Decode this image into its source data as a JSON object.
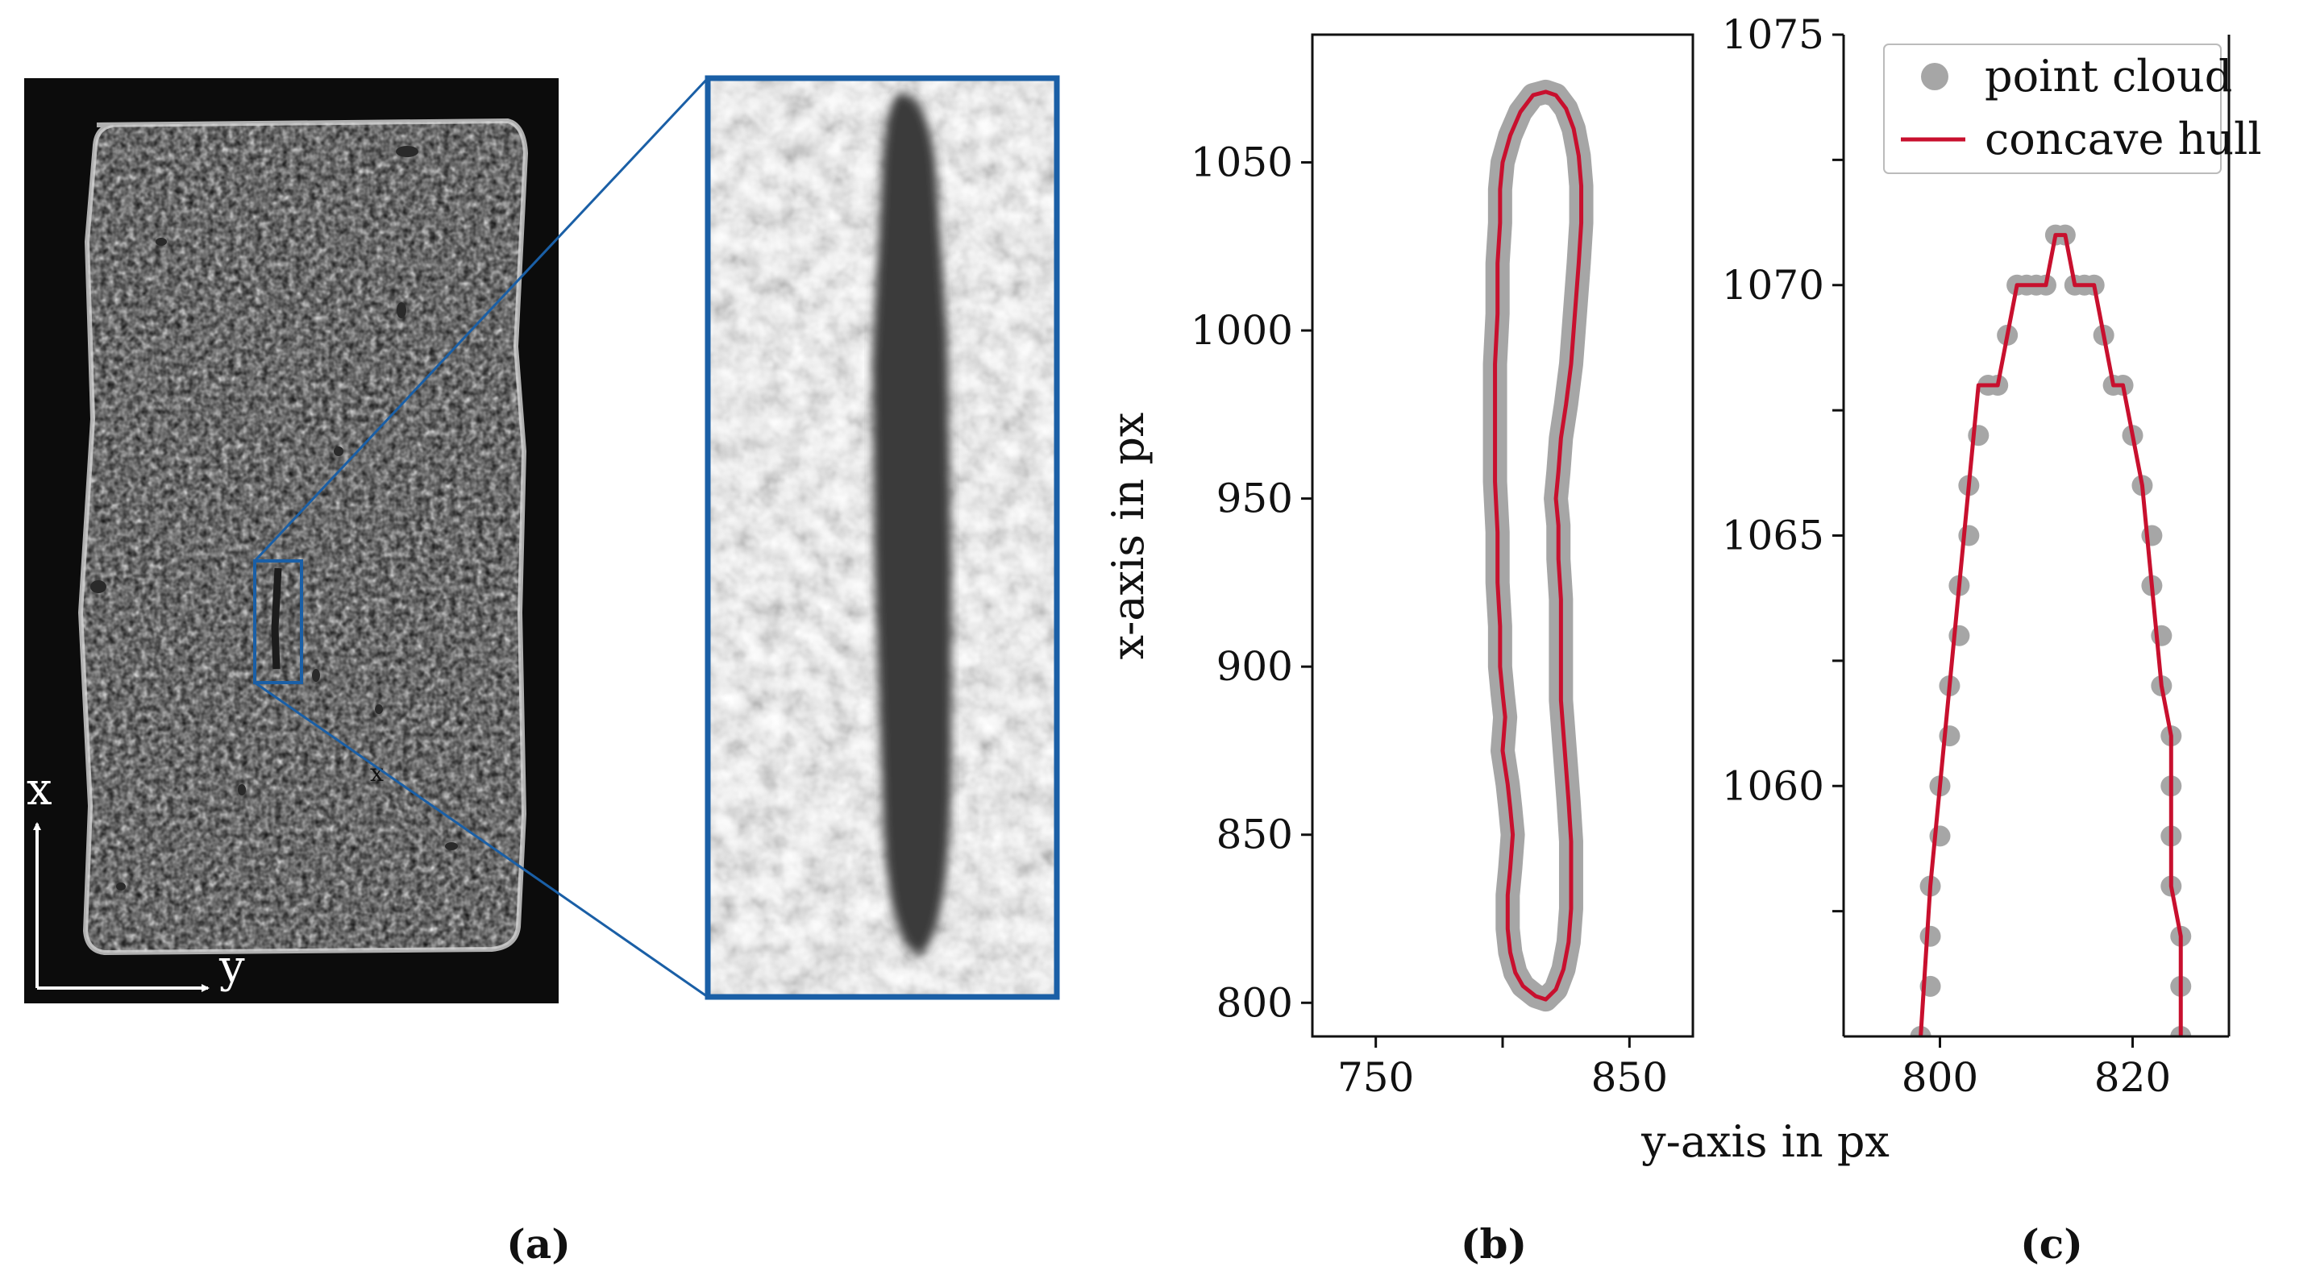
{
  "figure": {
    "panel_labels": {
      "a": "(a)",
      "b": "(b)",
      "c": "(c)"
    },
    "orientation_axes": {
      "vertical": "x",
      "horizontal": "y"
    },
    "marker_label": "x",
    "colors": {
      "zoom_box": "#1a5fa6",
      "hull": "#c8102e",
      "points": "#a6a6a6"
    }
  },
  "chart_data": [
    {
      "type": "scatter",
      "panel": "(b)",
      "title": "",
      "xlabel": "y-axis in px",
      "ylabel": "x-axis in px",
      "xlim": [
        725,
        875
      ],
      "ylim": [
        790,
        1088
      ],
      "xticks": [
        750,
        800,
        850
      ],
      "xtick_labels": [
        "750",
        "",
        "850"
      ],
      "yticks": [
        800,
        850,
        900,
        950,
        1000,
        1050
      ],
      "ytick_labels": [
        "800",
        "850",
        "900",
        "950",
        "1000",
        "1050"
      ],
      "grid": false,
      "series": [
        {
          "name": "concave hull",
          "closed": true,
          "points": [
            [
              817,
              801
            ],
            [
              813,
              802
            ],
            [
              808,
              805
            ],
            [
              805,
              809
            ],
            [
              803,
              815
            ],
            [
              802,
              822
            ],
            [
              802,
              832
            ],
            [
              803,
              840
            ],
            [
              804,
              850
            ],
            [
              803,
              858
            ],
            [
              802,
              865
            ],
            [
              800,
              875
            ],
            [
              801,
              885
            ],
            [
              800,
              892
            ],
            [
              799,
              900
            ],
            [
              799,
              912
            ],
            [
              798,
              925
            ],
            [
              798,
              940
            ],
            [
              797,
              955
            ],
            [
              797,
              975
            ],
            [
              797,
              990
            ],
            [
              798,
              1005
            ],
            [
              798,
              1020
            ],
            [
              799,
              1032
            ],
            [
              799,
              1042
            ],
            [
              800,
              1050
            ],
            [
              803,
              1058
            ],
            [
              807,
              1065
            ],
            [
              812,
              1070
            ],
            [
              817,
              1071
            ],
            [
              821,
              1070
            ],
            [
              825,
              1066
            ],
            [
              828,
              1060
            ],
            [
              830,
              1052
            ],
            [
              831,
              1043
            ],
            [
              831,
              1032
            ],
            [
              830,
              1020
            ],
            [
              829,
              1010
            ],
            [
              828,
              1000
            ],
            [
              827,
              990
            ],
            [
              825,
              978
            ],
            [
              823,
              968
            ],
            [
              822,
              958
            ],
            [
              821,
              950
            ],
            [
              822,
              942
            ],
            [
              822,
              932
            ],
            [
              823,
              920
            ],
            [
              823,
              905
            ],
            [
              823,
              890
            ],
            [
              824,
              880
            ],
            [
              825,
              870
            ],
            [
              826,
              860
            ],
            [
              827,
              848
            ],
            [
              827,
              838
            ],
            [
              827,
              828
            ],
            [
              826,
              818
            ],
            [
              824,
              810
            ],
            [
              821,
              804
            ]
          ]
        },
        {
          "name": "point cloud",
          "note_source": "same boundary traced by dense points",
          "points": "hull"
        }
      ]
    },
    {
      "type": "scatter",
      "panel": "(c)",
      "title": "",
      "xlabel": "y-axis in px",
      "ylabel": "",
      "xlim": [
        790,
        830
      ],
      "ylim": [
        1055,
        1075
      ],
      "xticks": [
        800,
        820
      ],
      "xtick_labels": [
        "800",
        "820"
      ],
      "yticks": [
        1060,
        1065,
        1070,
        1075
      ],
      "ytick_labels": [
        "1060",
        "1065",
        "1070",
        "1075"
      ],
      "minor_yticks": [
        1057.5,
        1062.5,
        1067.5,
        1072.5
      ],
      "grid": false,
      "legend": {
        "placement": "top-right",
        "entries": [
          "point cloud",
          "concave hull"
        ]
      },
      "series": [
        {
          "name": "point cloud",
          "points": [
            [
              798,
              1055
            ],
            [
              799,
              1056
            ],
            [
              799,
              1057
            ],
            [
              799,
              1058
            ],
            [
              800,
              1059
            ],
            [
              800,
              1060
            ],
            [
              801,
              1061
            ],
            [
              801,
              1062
            ],
            [
              802,
              1063
            ],
            [
              802,
              1064
            ],
            [
              803,
              1065
            ],
            [
              803,
              1066
            ],
            [
              804,
              1067
            ],
            [
              805,
              1068
            ],
            [
              806,
              1068
            ],
            [
              807,
              1069
            ],
            [
              808,
              1070
            ],
            [
              809,
              1070
            ],
            [
              810,
              1070
            ],
            [
              811,
              1070
            ],
            [
              812,
              1071
            ],
            [
              813,
              1071
            ],
            [
              814,
              1070
            ],
            [
              815,
              1070
            ],
            [
              816,
              1070
            ],
            [
              817,
              1069
            ],
            [
              818,
              1068
            ],
            [
              819,
              1068
            ],
            [
              820,
              1067
            ],
            [
              821,
              1066
            ],
            [
              822,
              1065
            ],
            [
              822,
              1064
            ],
            [
              823,
              1063
            ],
            [
              823,
              1062
            ],
            [
              824,
              1061
            ],
            [
              824,
              1060
            ],
            [
              824,
              1059
            ],
            [
              824,
              1058
            ],
            [
              825,
              1057
            ],
            [
              825,
              1056
            ],
            [
              825,
              1055
            ]
          ]
        },
        {
          "name": "concave hull",
          "points": [
            [
              798,
              1055
            ],
            [
              799,
              1058
            ],
            [
              800,
              1060
            ],
            [
              801,
              1062
            ],
            [
              802,
              1064
            ],
            [
              803,
              1066
            ],
            [
              804,
              1068
            ],
            [
              806,
              1068
            ],
            [
              808,
              1070
            ],
            [
              811,
              1070
            ],
            [
              812,
              1071
            ],
            [
              813,
              1071
            ],
            [
              814,
              1070
            ],
            [
              816,
              1070
            ],
            [
              818,
              1068
            ],
            [
              819,
              1068
            ],
            [
              820,
              1067
            ],
            [
              821,
              1066
            ],
            [
              822,
              1064
            ],
            [
              823,
              1062
            ],
            [
              824,
              1061
            ],
            [
              824,
              1058
            ],
            [
              825,
              1057
            ],
            [
              825,
              1055
            ]
          ]
        }
      ]
    }
  ]
}
